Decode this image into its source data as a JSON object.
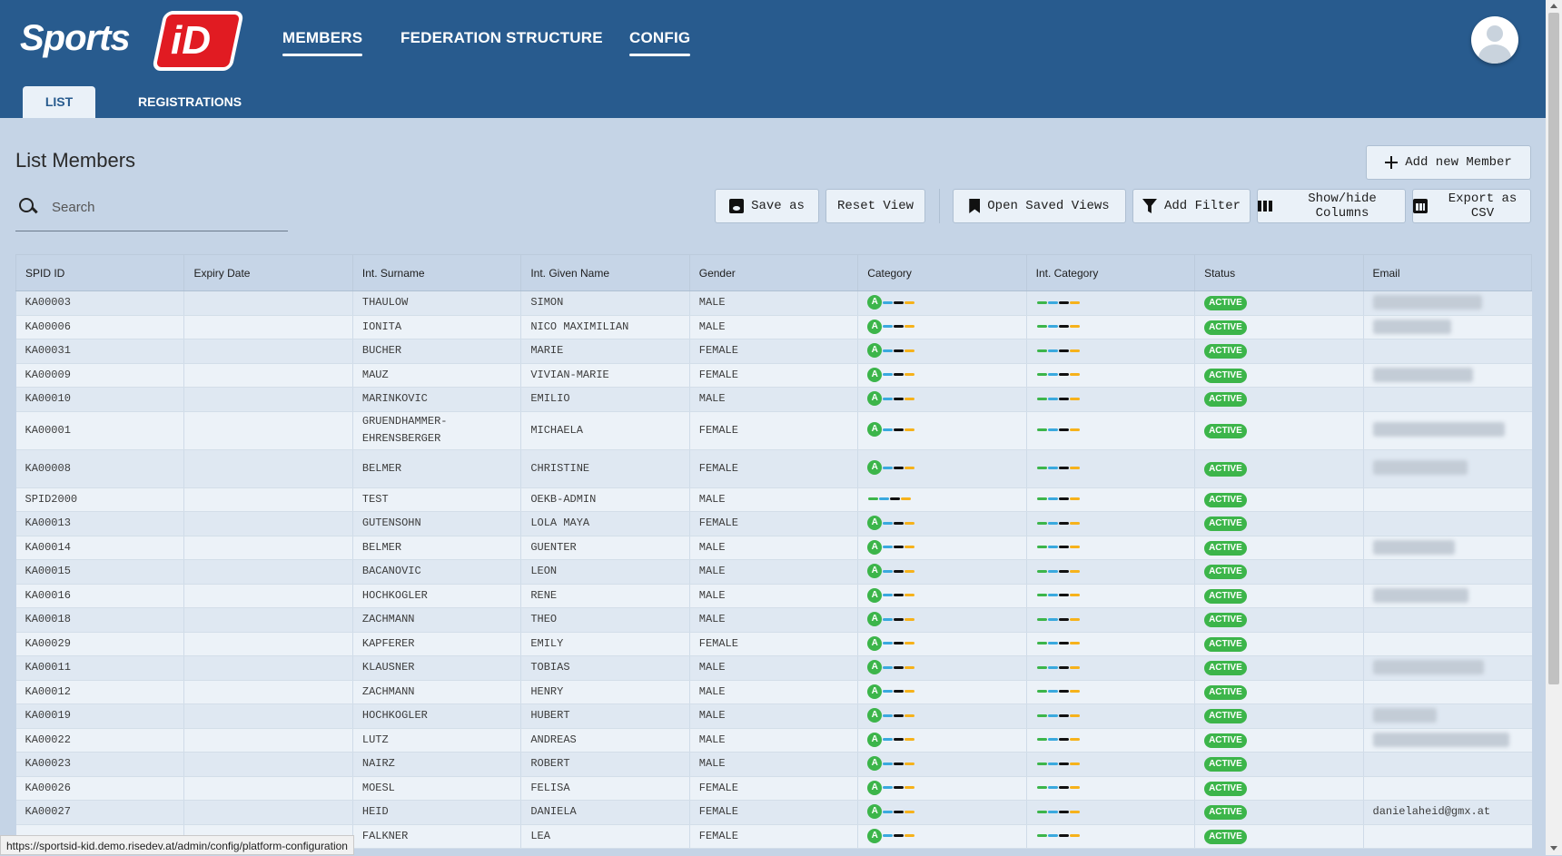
{
  "header": {
    "logo_text": "Sports",
    "logo_badge": "iD",
    "nav": [
      {
        "label": "MEMBERS",
        "active": true
      },
      {
        "label": "FEDERATION STRUCTURE",
        "active": false
      },
      {
        "label": "CONFIG",
        "active": true
      }
    ],
    "tabs": [
      {
        "label": "LIST",
        "active": true
      },
      {
        "label": "REGISTRATIONS",
        "active": false
      }
    ]
  },
  "page": {
    "title": "List Members",
    "search_placeholder": "Search",
    "buttons": {
      "add_member": "Add new Member",
      "save_as": "Save as",
      "reset_view": "Reset View",
      "open_saved_views": "Open Saved Views",
      "add_filter": "Add Filter",
      "show_hide_columns_1": "Show/hide",
      "show_hide_columns_2": "Columns",
      "export_csv_1": "Export as",
      "export_csv_2": "CSV"
    }
  },
  "table": {
    "columns": [
      "SPID ID",
      "Expiry Date",
      "Int. Surname",
      "Int. Given Name",
      "Gender",
      "Category",
      "Int. Category",
      "Status",
      "Email"
    ],
    "category_badge": "A",
    "status_label": "ACTIVE",
    "rows": [
      {
        "id": "KA00003",
        "expiry": "",
        "surname": "THAULOW",
        "given": "SIMON",
        "gender": "MALE",
        "email": "",
        "tall": false
      },
      {
        "id": "KA00006",
        "expiry": "",
        "surname": "IONITA",
        "given": "NICO MAXIMILIAN",
        "gender": "MALE",
        "email": "",
        "tall": false
      },
      {
        "id": "KA00031",
        "expiry": "",
        "surname": "BUCHER",
        "given": "MARIE",
        "gender": "FEMALE",
        "email": "",
        "tall": false
      },
      {
        "id": "KA00009",
        "expiry": "",
        "surname": "MAUZ",
        "given": "VIVIAN-MARIE",
        "gender": "FEMALE",
        "email": "",
        "tall": false
      },
      {
        "id": "KA00010",
        "expiry": "",
        "surname": "MARINKOVIC",
        "given": "EMILIO",
        "gender": "MALE",
        "email": "",
        "tall": false
      },
      {
        "id": "KA00001",
        "expiry": "",
        "surname": "GRUENDHAMMER-EHRENSBERGER",
        "given": "MICHAELA",
        "gender": "FEMALE",
        "email": "",
        "tall": true
      },
      {
        "id": "KA00008",
        "expiry": "",
        "surname": "BELMER",
        "given": "CHRISTINE",
        "gender": "FEMALE",
        "email": "",
        "tall": true
      },
      {
        "id": "SPID2000",
        "expiry": "",
        "surname": "TEST",
        "given": "OEKB-ADMIN",
        "gender": "MALE",
        "email": "",
        "tall": false,
        "no_badge": true
      },
      {
        "id": "KA00013",
        "expiry": "",
        "surname": "GUTENSOHN",
        "given": "LOLA MAYA",
        "gender": "FEMALE",
        "email": "",
        "tall": false
      },
      {
        "id": "KA00014",
        "expiry": "",
        "surname": "BELMER",
        "given": "GUENTER",
        "gender": "MALE",
        "email": "",
        "tall": false
      },
      {
        "id": "KA00015",
        "expiry": "",
        "surname": "BACANOVIC",
        "given": "LEON",
        "gender": "MALE",
        "email": "",
        "tall": false
      },
      {
        "id": "KA00016",
        "expiry": "",
        "surname": "HOCHKOGLER",
        "given": "RENE",
        "gender": "MALE",
        "email": "",
        "tall": false
      },
      {
        "id": "KA00018",
        "expiry": "",
        "surname": "ZACHMANN",
        "given": "THEO",
        "gender": "MALE",
        "email": "",
        "tall": false
      },
      {
        "id": "KA00029",
        "expiry": "",
        "surname": "KAPFERER",
        "given": "EMILY",
        "gender": "FEMALE",
        "email": "",
        "tall": false
      },
      {
        "id": "KA00011",
        "expiry": "",
        "surname": "KLAUSNER",
        "given": "TOBIAS",
        "gender": "MALE",
        "email": "",
        "tall": false
      },
      {
        "id": "KA00012",
        "expiry": "",
        "surname": "ZACHMANN",
        "given": "HENRY",
        "gender": "MALE",
        "email": "",
        "tall": false
      },
      {
        "id": "KA00019",
        "expiry": "",
        "surname": "HOCHKOGLER",
        "given": "HUBERT",
        "gender": "MALE",
        "email": "",
        "tall": false
      },
      {
        "id": "KA00022",
        "expiry": "",
        "surname": "LUTZ",
        "given": "ANDREAS",
        "gender": "MALE",
        "email": "",
        "tall": false
      },
      {
        "id": "KA00023",
        "expiry": "",
        "surname": "NAIRZ",
        "given": "ROBERT",
        "gender": "MALE",
        "email": "",
        "tall": false
      },
      {
        "id": "KA00026",
        "expiry": "",
        "surname": "MOESL",
        "given": "FELISA",
        "gender": "FEMALE",
        "email": "",
        "tall": false
      },
      {
        "id": "KA00027",
        "expiry": "",
        "surname": "HEID",
        "given": "DANIELA",
        "gender": "FEMALE",
        "email": "danielaheid@gmx.at",
        "tall": false
      },
      {
        "id": "",
        "expiry": "",
        "surname": "FALKNER",
        "given": "LEA",
        "gender": "FEMALE",
        "email": "",
        "tall": false
      }
    ]
  },
  "statusbar": {
    "url": "https://sportsid-kid.demo.risedev.at/admin/config/platform-configuration"
  }
}
